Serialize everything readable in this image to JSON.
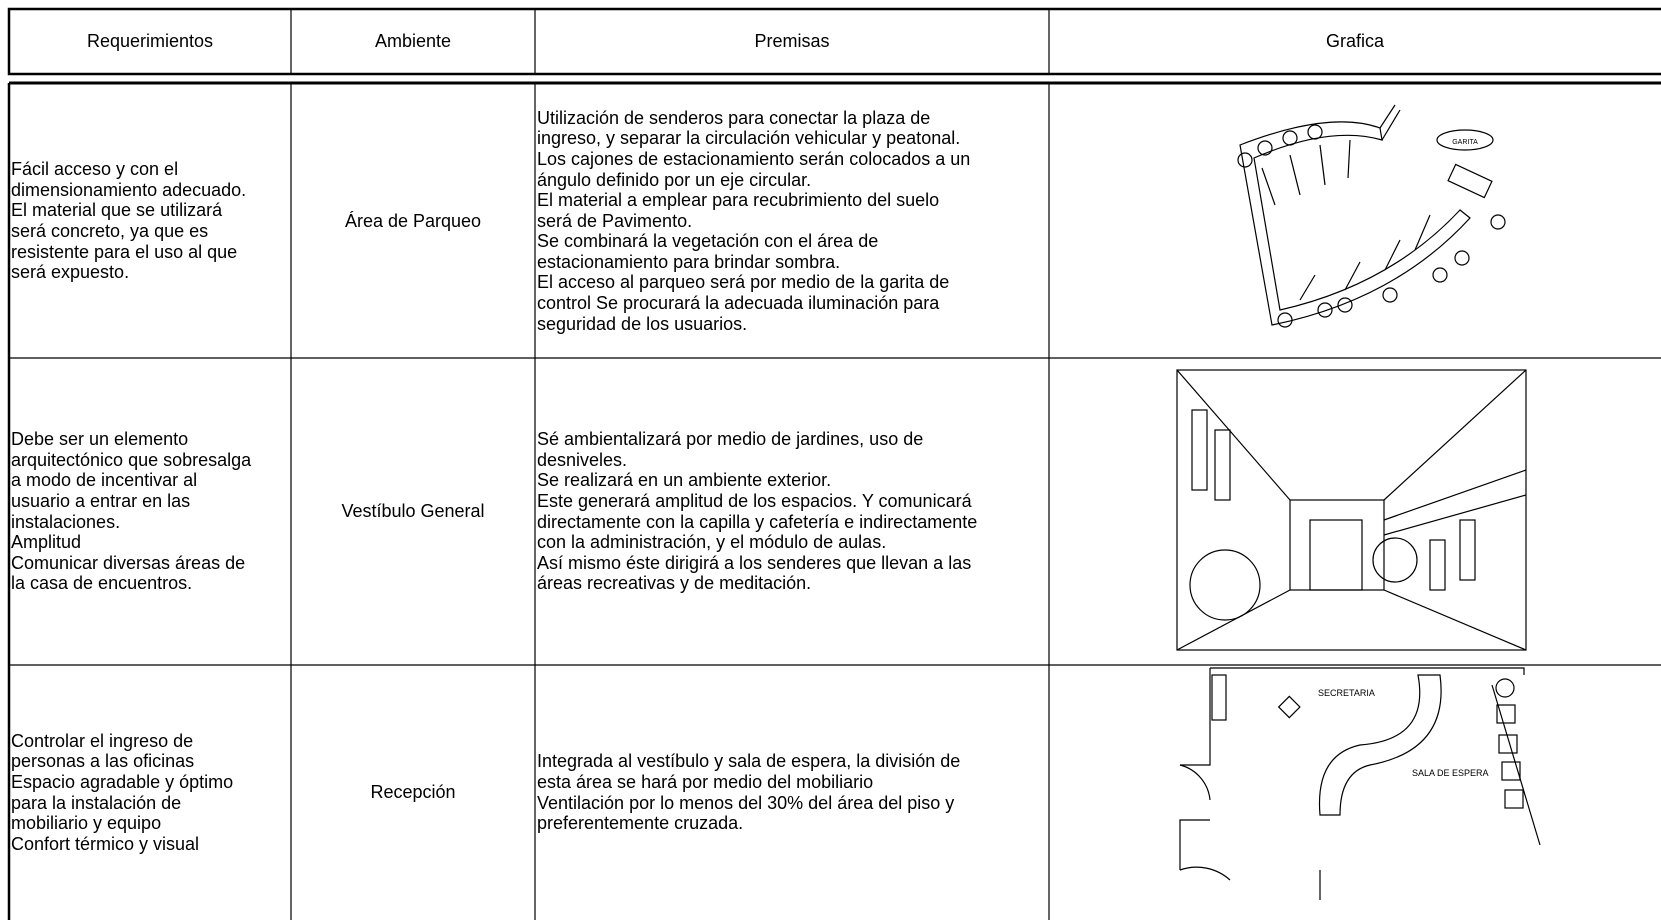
{
  "table": {
    "header": [
      "Requerimientos",
      "Ambiente",
      "Premisas",
      "Grafica"
    ],
    "rows": [
      {
        "requerimientos": [
          "Fácil acceso y con el",
          "dimensionamiento adecuado.",
          "El material que se utilizará",
          "será concreto, ya que es",
          "resistente para el uso al que",
          "será expuesto."
        ],
        "ambiente": "Área de Parqueo",
        "premisas": [
          "Utilización de senderos para conectar la plaza de",
          "ingreso, y separar la circulación vehicular y peatonal.",
          "Los cajones de estacionamiento serán colocados a un",
          "ángulo definido por un eje circular.",
          "El material a emplear para recubrimiento del suelo",
          "será de  Pavimento.",
          "Se combinará la vegetación con el área de",
          "estacionamiento para brindar sombra.",
          "El acceso al parqueo será por medio de la garita de",
          "control  Se procurará la adecuada iluminación para",
          "seguridad de los usuarios."
        ],
        "grafica_labels": [
          "GARITA"
        ]
      },
      {
        "requerimientos": [
          "Debe ser un elemento",
          "arquitectónico que sobresalga",
          "a modo de incentivar al",
          "usuario a entrar en las",
          "instalaciones.",
          "Amplitud",
          "Comunicar diversas áreas de",
          "la casa de encuentros."
        ],
        "ambiente": "Vestíbulo General",
        "premisas": [
          "Sé ambientalizará por medio de jardines, uso de",
          "desniveles.",
          "Se realizará en un ambiente exterior.",
          "Este generará amplitud de los espacios. Y comunicará",
          "directamente con la capilla y cafetería e indirectamente",
          "con la administración, y el módulo de aulas.",
          "Así mismo éste dirigirá a los senderes que llevan a las",
          "áreas recreativas y de meditación."
        ],
        "grafica_labels": []
      },
      {
        "requerimientos": [
          "Controlar el ingreso de",
          "personas a las oficinas",
          "Espacio agradable y óptimo",
          "para la instalación de",
          "mobiliario y equipo",
          "Confort térmico y visual"
        ],
        "ambiente": "Recepción",
        "premisas": [
          "Integrada al vestíbulo y sala de espera, la división de",
          "esta área se hará por medio del mobiliario",
          "Ventilación por lo menos del 30% del área del piso y",
          "preferentemente cruzada."
        ],
        "grafica_labels": [
          "SECRETARIA",
          "SALA DE ESPERA"
        ]
      }
    ]
  }
}
